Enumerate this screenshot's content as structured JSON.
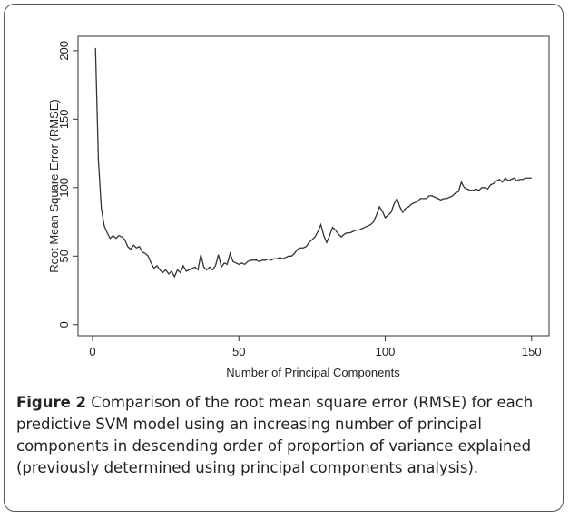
{
  "chart_data": {
    "type": "line",
    "x_label": "Number of Principal Components",
    "y_label": "Root Mean Square Error (RMSE)",
    "xlim": [
      -4.96,
      155.96
    ],
    "xticks": [
      0,
      50,
      100,
      150
    ],
    "ylim": [
      -8.1,
      210.5
    ],
    "yticks": [
      0,
      50,
      100,
      150,
      200
    ],
    "x": [
      1,
      2,
      3,
      4,
      5,
      6,
      7,
      8,
      9,
      10,
      11,
      12,
      13,
      14,
      15,
      16,
      17,
      18,
      19,
      20,
      21,
      22,
      23,
      24,
      25,
      26,
      27,
      28,
      29,
      30,
      31,
      32,
      33,
      34,
      35,
      36,
      37,
      38,
      39,
      40,
      41,
      42,
      43,
      44,
      45,
      46,
      47,
      48,
      49,
      50,
      51,
      52,
      53,
      54,
      55,
      56,
      57,
      58,
      59,
      60,
      61,
      62,
      63,
      64,
      65,
      66,
      67,
      68,
      69,
      70,
      71,
      72,
      73,
      74,
      75,
      76,
      77,
      78,
      79,
      80,
      81,
      82,
      83,
      84,
      85,
      86,
      87,
      88,
      89,
      90,
      91,
      92,
      93,
      94,
      95,
      96,
      97,
      98,
      99,
      100,
      101,
      102,
      103,
      104,
      105,
      106,
      107,
      108,
      109,
      110,
      111,
      112,
      113,
      114,
      115,
      116,
      117,
      118,
      119,
      120,
      121,
      122,
      123,
      124,
      125,
      126,
      127,
      128,
      129,
      130,
      131,
      132,
      133,
      134,
      135,
      136,
      137,
      138,
      139,
      140,
      141,
      142,
      143,
      144,
      145,
      146,
      147,
      148,
      149,
      150
    ],
    "series": [
      {
        "color": "#333333",
        "values": [
          202,
          120,
          85,
          72,
          67,
          63,
          65,
          63,
          65,
          64,
          62,
          57,
          55,
          58,
          56,
          57,
          53,
          52,
          50,
          45,
          41,
          43,
          40,
          38,
          40,
          37,
          39,
          35,
          40,
          38,
          43,
          39,
          40,
          41,
          42,
          40,
          51,
          42,
          40,
          42,
          40,
          43,
          51,
          42,
          45,
          44,
          52,
          46,
          45,
          44,
          45,
          44,
          46,
          47,
          47,
          47,
          46,
          47,
          47,
          48,
          47,
          48,
          48,
          49,
          48,
          49,
          50,
          50,
          52,
          55,
          56,
          56,
          57,
          60,
          62,
          64,
          68,
          73,
          65,
          60,
          65,
          71,
          69,
          66,
          64,
          66,
          67,
          67,
          68,
          69,
          69,
          70,
          71,
          72,
          73,
          75,
          80,
          86,
          83,
          78,
          80,
          82,
          88,
          92,
          86,
          82,
          85,
          86,
          88,
          89,
          90,
          92,
          92,
          92,
          94,
          94,
          93,
          92,
          91,
          92,
          92,
          93,
          94,
          96,
          97,
          104,
          100,
          99,
          98,
          98,
          99,
          98,
          100,
          100,
          99,
          102,
          103,
          105,
          106,
          104,
          107,
          105,
          106,
          107,
          105,
          106,
          106,
          107,
          107,
          107
        ]
      }
    ]
  },
  "caption": {
    "label": "Figure 2",
    "text": "Comparison of the root mean square error (RMSE) for each predictive SVM model using an increasing number of principal components in descending order of proportion of variance explained (previously determined using principal components analysis)."
  }
}
